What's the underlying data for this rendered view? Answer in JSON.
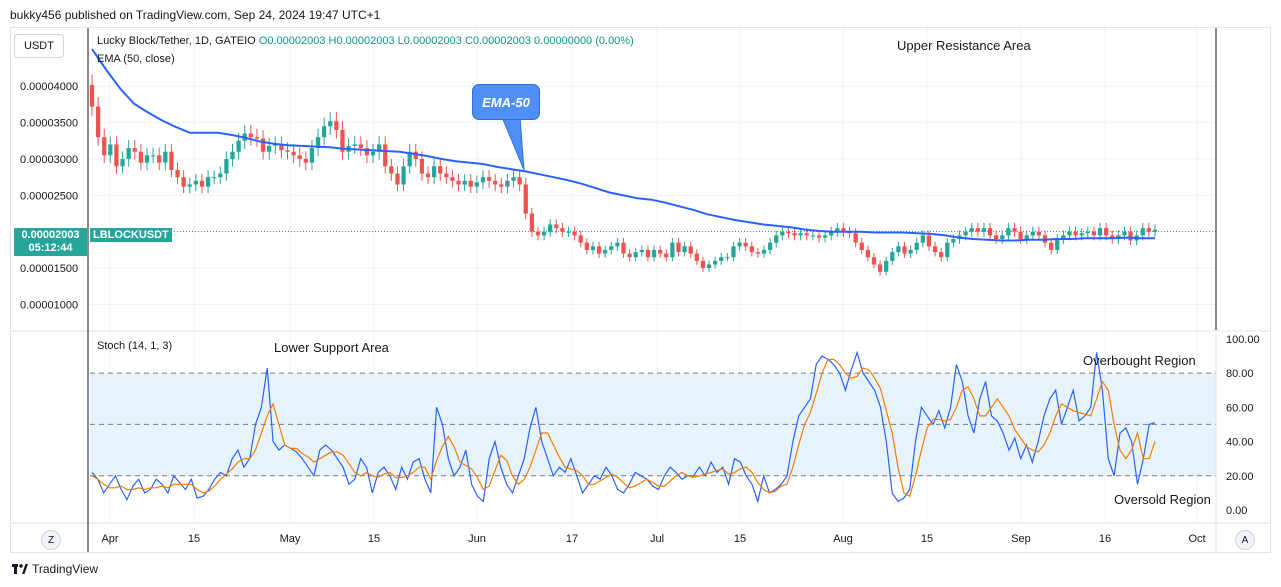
{
  "header": {
    "text": "bukky456 published on TradingView.com, Sep 24, 2024 19:47 UTC+1"
  },
  "footer": {
    "brand": "TradingView"
  },
  "currency_button": "USDT",
  "legend": {
    "symbol": "Lucky Block/Tether, 1D, GATEIO",
    "ohlc": "O0.00002003 H0.00002003 L0.00002003 C0.00002003 0.00000000 (0.00%)",
    "ema": "EMA (50, close)"
  },
  "price_tag": {
    "price": "0.00002003",
    "countdown": "05:12:44",
    "symbol": "LBLOCKUSDT"
  },
  "stoch_label": "Stoch (14, 1, 3)",
  "annotations": {
    "upper_resistance": "Upper Resistance Area",
    "lower_support": "Lower Support Area",
    "overbought": "Overbought Region",
    "oversold": "Oversold Region",
    "ema_callout": "EMA-50"
  },
  "buttons": {
    "z": "Z",
    "a": "A"
  },
  "colors": {
    "up": "#26a69a",
    "down": "#ef5350",
    "ema": "#2962ff",
    "k": "#2962ff",
    "d": "#f57c00",
    "band": "#e3f2fd"
  },
  "chart_data": [
    {
      "type": "candlestick",
      "title": "Lucky Block/Tether, 1D, GATEIO",
      "y_tick_labels": [
        "0.00001000",
        "0.00001500",
        "0.00002500",
        "0.00003000",
        "0.00003500",
        "0.00004000"
      ],
      "x_tick_labels": [
        "Apr",
        "15",
        "May",
        "15",
        "Jun",
        "17",
        "Jul",
        "15",
        "Aug",
        "15",
        "Sep",
        "16",
        "Oct"
      ],
      "ylim": [
        6.5e-06,
        4.8e-05
      ],
      "last_close": 2.003e-05,
      "ema_period": 50,
      "close": [
        3.72e-05,
        3.3e-05,
        3.05e-05,
        3.2e-05,
        2.9e-05,
        3e-05,
        3.15e-05,
        3.1e-05,
        2.95e-05,
        3.05e-05,
        3.05e-05,
        2.95e-05,
        3.1e-05,
        2.85e-05,
        2.75e-05,
        2.62e-05,
        2.65e-05,
        2.7e-05,
        2.62e-05,
        2.75e-05,
        2.75e-05,
        2.8e-05,
        3e-05,
        3.1e-05,
        3.25e-05,
        3.35e-05,
        3.3e-05,
        3.28e-05,
        3.1e-05,
        3.18e-05,
        3.2e-05,
        3.12e-05,
        3.1e-05,
        3.05e-05,
        3e-05,
        2.95e-05,
        3.15e-05,
        3.3e-05,
        3.45e-05,
        3.52e-05,
        3.4e-05,
        3.1e-05,
        3.18e-05,
        3.2e-05,
        3.15e-05,
        3.05e-05,
        3.1e-05,
        3.2e-05,
        2.9e-05,
        2.8e-05,
        2.65e-05,
        2.9e-05,
        3.1e-05,
        3e-05,
        2.8e-05,
        2.75e-05,
        2.9e-05,
        2.8e-05,
        2.75e-05,
        2.7e-05,
        2.65e-05,
        2.7e-05,
        2.62e-05,
        2.68e-05,
        2.75e-05,
        2.7e-05,
        2.65e-05,
        2.62e-05,
        2.7e-05,
        2.75e-05,
        2.65e-05,
        2.25e-05,
        2e-05,
        1.95e-05,
        2e-05,
        2.1e-05,
        2.05e-05,
        2e-05,
        2e-05,
        1.95e-05,
        1.85e-05,
        1.75e-05,
        1.8e-05,
        1.7e-05,
        1.75e-05,
        1.8e-05,
        1.85e-05,
        1.7e-05,
        1.65e-05,
        1.72e-05,
        1.75e-05,
        1.65e-05,
        1.75e-05,
        1.7e-05,
        1.65e-05,
        1.85e-05,
        1.72e-05,
        1.8e-05,
        1.7e-05,
        1.6e-05,
        1.5e-05,
        1.55e-05,
        1.6e-05,
        1.65e-05,
        1.65e-05,
        1.8e-05,
        1.85e-05,
        1.8e-05,
        1.72e-05,
        1.7e-05,
        1.75e-05,
        1.85e-05,
        1.95e-05,
        2e-05,
        1.98e-05,
        1.95e-05,
        1.98e-05,
        1.95e-05,
        1.95e-05,
        1.92e-05,
        1.95e-05,
        2e-05,
        2.05e-05,
        2e-05,
        1.98e-05,
        1.85e-05,
        1.75e-05,
        1.65e-05,
        1.55e-05,
        1.45e-05,
        1.6e-05,
        1.72e-05,
        1.8e-05,
        1.7e-05,
        1.75e-05,
        1.85e-05,
        1.95e-05,
        1.8e-05,
        1.72e-05,
        1.65e-05,
        1.85e-05,
        1.9e-05,
        1.95e-05,
        2e-05,
        2.05e-05,
        2e-05,
        2.05e-05,
        1.95e-05,
        1.9e-05,
        1.95e-05,
        2.05e-05,
        2e-05,
        1.9e-05,
        1.95e-05,
        2e-05,
        1.95e-05,
        1.85e-05,
        1.75e-05,
        1.9e-05,
        1.95e-05,
        2e-05,
        1.95e-05,
        1.98e-05,
        2e-05,
        1.95e-05,
        2.05e-05,
        1.95e-05,
        1.9e-05,
        1.95e-05,
        2e-05,
        1.88e-05,
        1.95e-05,
        2.05e-05,
        2e-05,
        2.03e-05
      ],
      "ema": [
        4.51e-05,
        4.23e-05,
        3.97e-05,
        3.76e-05,
        3.64e-05,
        3.53e-05,
        3.44e-05,
        3.36e-05,
        3.36e-05,
        3.36e-05,
        3.33e-05,
        3.29e-05,
        3.24e-05,
        3.21e-05,
        3.19e-05,
        3.18e-05,
        3.17e-05,
        3.16e-05,
        3.14e-05,
        3.13e-05,
        3.12e-05,
        3.11e-05,
        3.1e-05,
        3.07e-05,
        3.04e-05,
        3e-05,
        2.97e-05,
        2.95e-05,
        2.93e-05,
        2.89e-05,
        2.86e-05,
        2.83e-05,
        2.79e-05,
        2.75e-05,
        2.71e-05,
        2.66e-05,
        2.6e-05,
        2.54e-05,
        2.5e-05,
        2.46e-05,
        2.44e-05,
        2.4e-05,
        2.35e-05,
        2.3e-05,
        2.24e-05,
        2.2e-05,
        2.16e-05,
        2.13e-05,
        2.1e-05,
        2.08e-05,
        2.06e-05,
        2.03e-05,
        2.01e-05,
        2e-05,
        2e-05,
        2e-05,
        1.99e-05,
        1.99e-05,
        1.99e-05,
        1.98e-05,
        1.97e-05,
        1.95e-05,
        1.92e-05,
        1.9e-05,
        1.89e-05,
        1.88e-05,
        1.88e-05,
        1.89e-05,
        1.89e-05,
        1.9e-05,
        1.9e-05,
        1.91e-05,
        1.91e-05,
        1.91e-05,
        1.92e-05,
        1.91e-05,
        1.91e-05
      ]
    },
    {
      "type": "line",
      "title": "Stoch (14, 1, 3)",
      "y_tick_labels": [
        "0.00",
        "20.00",
        "40.00",
        "60.00",
        "80.00",
        "100.00"
      ],
      "ylim": [
        -7,
        104
      ],
      "overbought_line": 80,
      "mid_line": 50,
      "oversold_line": 20,
      "series": [
        {
          "values": [
            22,
            18,
            10,
            15,
            20,
            12,
            6,
            14,
            18,
            10,
            12,
            18,
            15,
            10,
            20,
            16,
            12,
            18,
            7,
            8,
            12,
            18,
            22,
            20,
            30,
            35,
            25,
            30,
            50,
            60,
            83,
            40,
            35,
            38,
            36,
            34,
            30,
            25,
            20,
            35,
            38,
            35,
            30,
            25,
            15,
            18,
            30,
            25,
            10,
            22,
            25,
            20,
            12,
            25,
            18,
            28,
            30,
            18,
            10,
            60,
            50,
            30,
            20,
            25,
            35,
            15,
            8,
            5,
            30,
            40,
            25,
            15,
            10,
            20,
            30,
            48,
            60,
            40,
            30,
            20,
            25,
            22,
            30,
            20,
            10,
            15,
            20,
            18,
            25,
            20,
            12,
            10,
            15,
            22,
            20,
            18,
            14,
            12,
            20,
            25,
            22,
            18,
            20,
            20,
            25,
            20,
            28,
            22,
            25,
            15,
            30,
            28,
            20,
            15,
            5,
            20,
            10,
            12,
            15,
            20,
            40,
            55,
            60,
            65,
            85,
            90,
            88,
            85,
            80,
            70,
            82,
            92,
            80,
            75,
            70,
            60,
            40,
            10,
            5,
            7,
            12,
            40,
            60,
            55,
            50,
            58,
            48,
            60,
            85,
            75,
            55,
            45,
            65,
            75,
            55,
            52,
            45,
            35,
            42,
            30,
            38,
            28,
            40,
            55,
            65,
            70,
            50,
            60,
            70,
            52,
            55,
            60,
            92,
            70,
            30,
            20,
            45,
            48,
            40,
            15,
            30,
            50,
            51
          ]
        },
        {
          "values": [
            20,
            18,
            15,
            13,
            13,
            14,
            12,
            12,
            13,
            12,
            13,
            13,
            14,
            13,
            15,
            15,
            15,
            15,
            12,
            10,
            11,
            14,
            18,
            21,
            24,
            28,
            30,
            30,
            35,
            45,
            55,
            62,
            50,
            38,
            36,
            36,
            33,
            31,
            28,
            30,
            32,
            34,
            34,
            32,
            27,
            22,
            20,
            22,
            20,
            19,
            21,
            22,
            19,
            19,
            20,
            22,
            25,
            25,
            18,
            29,
            37,
            43,
            37,
            28,
            26,
            24,
            19,
            12,
            14,
            23,
            32,
            29,
            20,
            15,
            18,
            25,
            35,
            45,
            45,
            38,
            31,
            25,
            24,
            23,
            20,
            15,
            15,
            17,
            19,
            21,
            19,
            16,
            13,
            14,
            16,
            18,
            16,
            14,
            14,
            17,
            20,
            22,
            20,
            19,
            20,
            21,
            22,
            23,
            24,
            21,
            22,
            24,
            25,
            22,
            16,
            12,
            10,
            11,
            14,
            15,
            25,
            38,
            50,
            57,
            68,
            80,
            88,
            88,
            85,
            80,
            77,
            78,
            83,
            82,
            77,
            71,
            58,
            45,
            25,
            10,
            8,
            20,
            35,
            48,
            53,
            53,
            52,
            53,
            60,
            70,
            72,
            65,
            55,
            55,
            60,
            65,
            60,
            55,
            47,
            42,
            37,
            35,
            34,
            38,
            45,
            55,
            62,
            60,
            58,
            57,
            56,
            55,
            65,
            75,
            70,
            50,
            35,
            30,
            35,
            45,
            30,
            30,
            40
          ]
        }
      ]
    }
  ]
}
